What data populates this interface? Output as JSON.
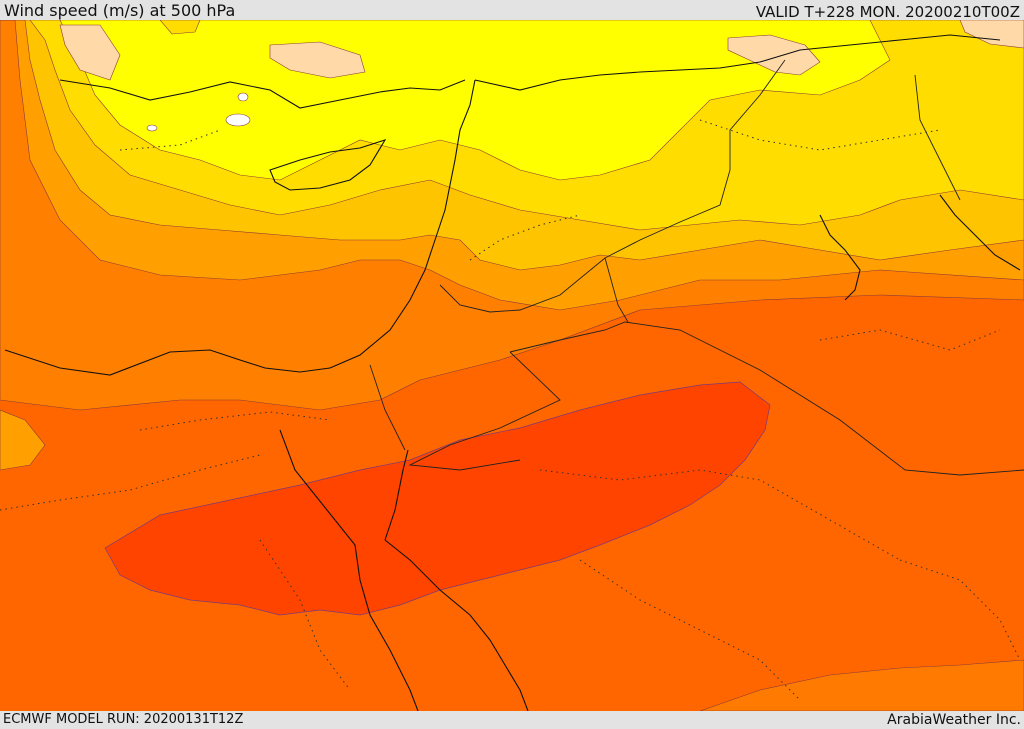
{
  "header": {
    "title": "Wind speed (m/s) at 500 hPa",
    "valid": "VALID T+228 MON. 20200210T00Z"
  },
  "footer": {
    "model_run": "ECMWF MODEL RUN: 20200131T12Z",
    "credit": "ArabiaWeather Inc."
  },
  "map": {
    "variable": "wind speed",
    "level": "500 hPa",
    "units": "m/s",
    "color_scale": [
      "#ffd9a8",
      "#ffff00",
      "#ffe000",
      "#ffc400",
      "#ff9f00",
      "#ff7f00",
      "#ff6200",
      "#ff4500"
    ]
  }
}
